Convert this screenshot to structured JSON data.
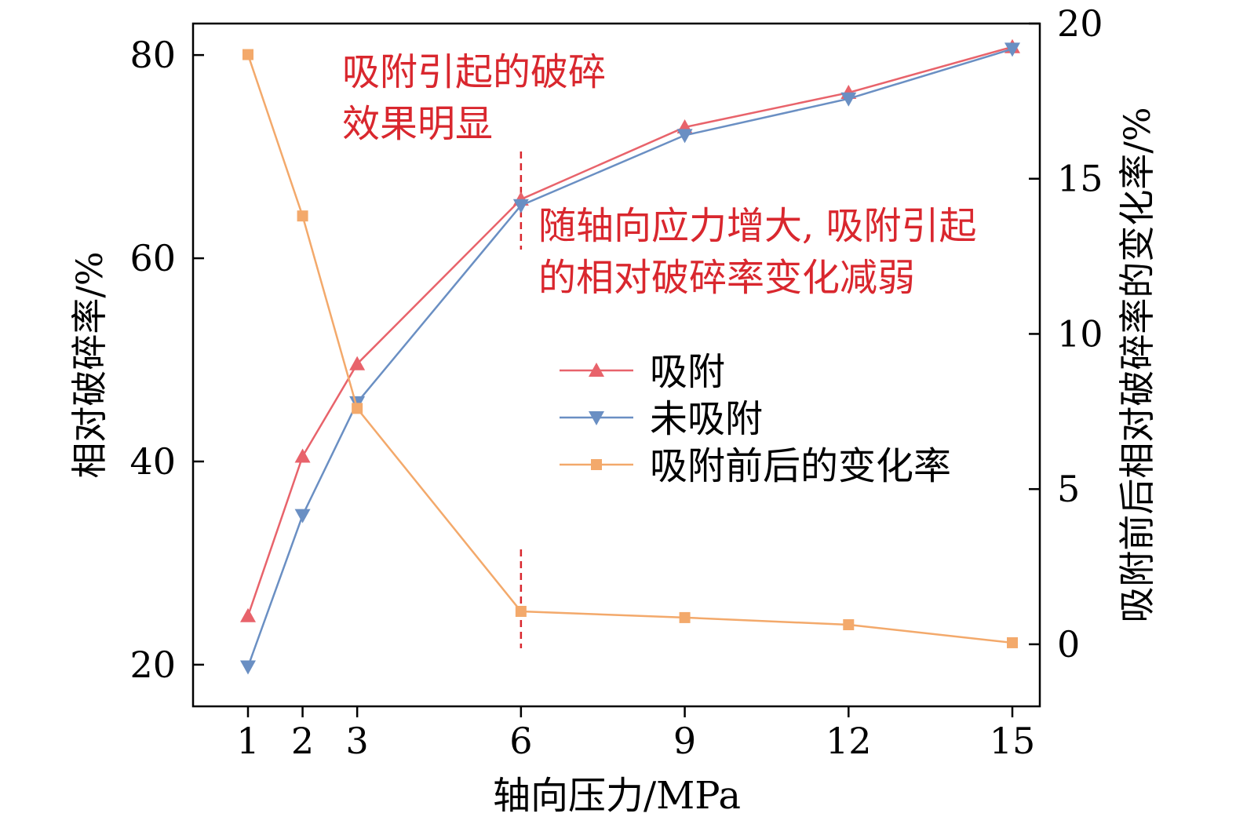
{
  "chart_data": {
    "type": "line",
    "xlabel": "轴向压力/MPa",
    "ylabel": "相对破碎率/%",
    "ylabel_right": "吸附前后相对破碎率的变化率/%",
    "x": [
      1,
      2,
      3,
      6,
      9,
      12,
      15
    ],
    "x_ticks": [
      "1",
      "2",
      "3",
      "6",
      "9",
      "12",
      "15"
    ],
    "ylim": [
      15.9,
      83.1
    ],
    "y_ticks": [
      "20",
      "40",
      "60",
      "80"
    ],
    "ylim_right": [
      -2.0,
      20
    ],
    "y_ticks_right": [
      "0",
      "5",
      "10",
      "15",
      "20"
    ],
    "grid": false,
    "legend_position": "center-right",
    "series": [
      {
        "name": "吸附",
        "axis": "left",
        "marker": "triangle-up",
        "color": "#e8636b",
        "values": [
          24.8,
          40.5,
          49.6,
          65.8,
          72.9,
          76.3,
          80.8
        ]
      },
      {
        "name": "未吸附",
        "axis": "left",
        "marker": "triangle-down",
        "color": "#6a8fc3",
        "values": [
          19.8,
          34.7,
          45.8,
          65.2,
          72.1,
          75.7,
          80.6
        ]
      },
      {
        "name": "吸附前后的变化率",
        "axis": "right",
        "marker": "square",
        "color": "#f3a96b",
        "values": [
          19.0,
          13.8,
          7.6,
          1.06,
          0.86,
          0.63,
          0.05
        ]
      }
    ],
    "annotations": {
      "top_line1": "吸附引起的破碎",
      "top_line2": "效果明显",
      "mid_line1": "随轴向应力增大, 吸附引起",
      "mid_line2": "的相对破碎率变化减弱",
      "color": "#d9272e"
    }
  }
}
